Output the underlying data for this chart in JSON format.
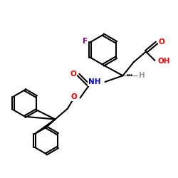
{
  "background": "#ffffff",
  "bond_color": "#000000",
  "bond_lw": 1.5,
  "atom_colors": {
    "O": "#ff0000",
    "N": "#0000cc",
    "F": "#8b008b",
    "H": "#999999",
    "C": "#000000"
  },
  "font_size": 7.5
}
